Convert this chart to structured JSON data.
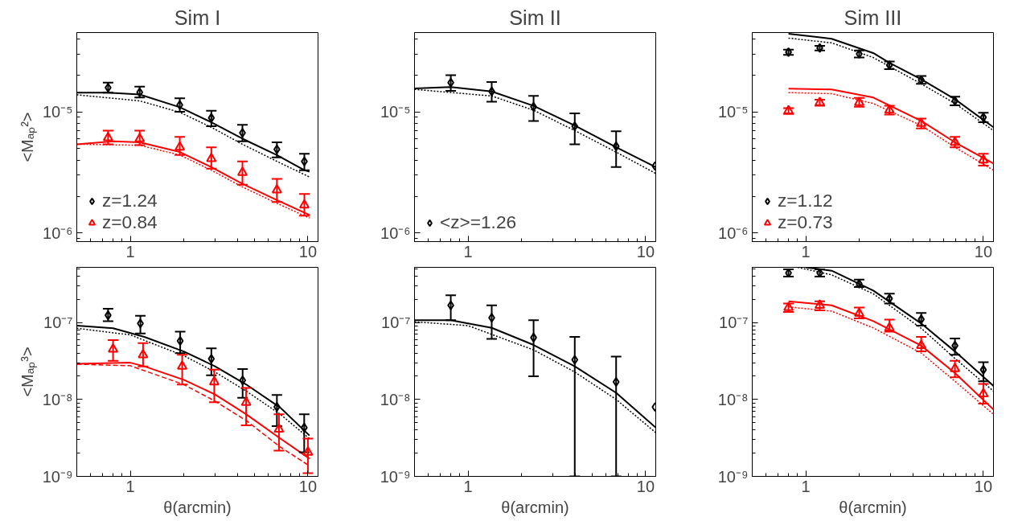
{
  "chart_data": [
    {
      "type": "scatter",
      "title": "Sim I",
      "ylabel": "<Mₐₚ²>",
      "xlim": [
        0.5,
        11.4
      ],
      "ylim": [
        8.5e-07,
        4.5e-05
      ],
      "xticks": [
        1,
        10
      ],
      "yticks": [
        {
          "value": 1e-06,
          "label": "10⁻⁶"
        },
        {
          "value": 1e-05,
          "label": "10⁻⁵"
        }
      ],
      "log": "xy",
      "grid": false,
      "legend": "bottom left",
      "series": [
        {
          "type": "line",
          "color": "#000000",
          "line_style": "solid",
          "x": [
            0.5,
            0.75,
            1.13,
            1.9,
            2.86,
            4.28,
            6.69,
            9.55,
            10.2
          ],
          "values": [
            1.44e-05,
            1.44e-05,
            1.39e-05,
            1.09e-05,
            8.2e-06,
            6e-06,
            4.4e-06,
            3.3e-06,
            3.2e-06
          ]
        },
        {
          "type": "line",
          "color": "#000000",
          "line_style": "dotted",
          "x": [
            0.5,
            1.13,
            1.9,
            2.86,
            4.28,
            6.69,
            10.2
          ],
          "values": [
            1.38e-05,
            1.23e-05,
            9.9e-06,
            7.45e-06,
            5.4e-06,
            3.9e-06,
            2.9e-06
          ]
        },
        {
          "type": "line",
          "color": "#ff0000",
          "line_style": "solid",
          "x": [
            0.5,
            0.8,
            1.13,
            1.9,
            2.86,
            4.28,
            6.69,
            10.2
          ],
          "values": [
            5.4e-06,
            5.7e-06,
            5.6e-06,
            4.66e-06,
            3.5e-06,
            2.55e-06,
            1.87e-06,
            1.41e-06
          ]
        },
        {
          "type": "line",
          "color": "#ff0000",
          "line_style": "dotted",
          "x": [
            0.5,
            1.13,
            1.9,
            2.86,
            4.28,
            6.69,
            10.2
          ],
          "values": [
            5.4e-06,
            5.3e-06,
            4.4e-06,
            3.3e-06,
            2.4e-06,
            1.76e-06,
            1.33e-06
          ]
        },
        {
          "name": "z=1.24",
          "color": "#000000",
          "marker": "diamond",
          "x": [
            0.75,
            1.13,
            1.9,
            2.86,
            4.28,
            6.69,
            9.55
          ],
          "values": [
            1.58e-05,
            1.45e-05,
            1.14e-05,
            8.9e-06,
            6.7e-06,
            4.9e-06,
            3.9e-06
          ],
          "errors": [
            [
              1.44e-05,
              1.74e-05
            ],
            [
              1.31e-05,
              1.61e-05
            ],
            [
              1e-05,
              1.29e-05
            ],
            [
              7.6e-06,
              1.02e-05
            ],
            [
              5.7e-06,
              7.8e-06
            ],
            [
              4.2e-06,
              5.6e-06
            ],
            [
              3.3e-06,
              4.5e-06
            ]
          ]
        },
        {
          "name": "z=0.84",
          "color": "#ff0000",
          "marker": "triangle",
          "x": [
            0.75,
            1.13,
            1.9,
            2.86,
            4.28,
            6.69,
            9.55
          ],
          "values": [
            6.1e-06,
            6e-06,
            5.1e-06,
            4.1e-06,
            3.15e-06,
            2.26e-06,
            1.7e-06
          ],
          "errors": [
            [
              5.4e-06,
              7e-06
            ],
            [
              5.3e-06,
              7e-06
            ],
            [
              4.4e-06,
              6.2e-06
            ],
            [
              3.4e-06,
              5.1e-06
            ],
            [
              2.5e-06,
              3.9e-06
            ],
            [
              1.8e-06,
              2.8e-06
            ],
            [
              1.39e-06,
              2.1e-06
            ]
          ]
        }
      ]
    },
    {
      "type": "scatter",
      "title": "Sim II",
      "xlim": [
        0.5,
        11.4
      ],
      "ylim": [
        8.5e-07,
        4.5e-05
      ],
      "xticks": [
        1,
        10
      ],
      "yticks": [
        {
          "value": 1e-06,
          "label": "10⁻⁶"
        },
        {
          "value": 1e-05,
          "label": "10⁻⁵"
        }
      ],
      "log": "xy",
      "grid": false,
      "legend": "bottom left",
      "series": [
        {
          "type": "line",
          "color": "#000000",
          "line_style": "solid",
          "x": [
            0.5,
            0.8,
            1.36,
            2.34,
            3.99,
            6.82,
            11.4
          ],
          "values": [
            1.56e-05,
            1.6e-05,
            1.47e-05,
            1.12e-05,
            7.7e-06,
            5.1e-06,
            3.5e-06
          ]
        },
        {
          "type": "line",
          "color": "#000000",
          "line_style": "dotted",
          "x": [
            0.5,
            1.36,
            2.34,
            3.99,
            6.82,
            11.4
          ],
          "values": [
            1.53e-05,
            1.35e-05,
            1.03e-05,
            7e-06,
            4.65e-06,
            3.1e-06
          ]
        },
        {
          "name": "<z>=1.26",
          "color": "#000000",
          "marker": "diamond",
          "x": [
            0.8,
            1.36,
            2.34,
            3.99,
            6.82,
            11.3
          ],
          "values": [
            1.74e-05,
            1.47e-05,
            1.1e-05,
            7.6e-06,
            5.2e-06,
            3.57e-06
          ],
          "errors": [
            [
              1.49e-05,
              2e-05
            ],
            [
              1.21e-05,
              1.76e-05
            ],
            [
              8.4e-06,
              1.35e-05
            ],
            [
              5.4e-06,
              9.7e-06
            ],
            [
              3.5e-06,
              6.9e-06
            ],
            null
          ]
        }
      ]
    },
    {
      "type": "scatter",
      "title": "Sim III",
      "xlim": [
        0.5,
        11.4
      ],
      "ylim": [
        8.5e-07,
        4.5e-05
      ],
      "xticks": [
        1,
        10
      ],
      "yticks": [
        {
          "value": 1e-06,
          "label": "10⁻⁶"
        },
        {
          "value": 1e-05,
          "label": "10⁻⁵"
        }
      ],
      "log": "xy",
      "grid": false,
      "legend": "bottom left",
      "series": [
        {
          "type": "line",
          "color": "#000000",
          "line_style": "solid",
          "x": [
            0.8,
            1.4,
            2.4,
            2.96,
            4.47,
            6.92,
            11.4
          ],
          "values": [
            4.4e-05,
            4e-05,
            3.05e-05,
            2.53e-05,
            1.85e-05,
            1.27e-05,
            7.45e-06
          ]
        },
        {
          "type": "line",
          "color": "#000000",
          "line_style": "dotted",
          "x": [
            0.8,
            1.4,
            2.4,
            4.47,
            6.92,
            11.4
          ],
          "values": [
            4.05e-05,
            3.7e-05,
            2.8e-05,
            1.7e-05,
            1.17e-05,
            7e-06
          ]
        },
        {
          "type": "line",
          "color": "#ff0000",
          "line_style": "solid",
          "x": [
            0.8,
            1.4,
            2.4,
            4.47,
            6.92,
            11.4
          ],
          "values": [
            1.55e-05,
            1.53e-05,
            1.31e-05,
            8.4e-06,
            5.6e-06,
            3.74e-06
          ]
        },
        {
          "type": "line",
          "color": "#ff0000",
          "line_style": "dotted",
          "x": [
            0.8,
            1.4,
            2.4,
            4.47,
            6.92,
            11.4
          ],
          "values": [
            1.44e-05,
            1.41e-05,
            1.17e-05,
            7.7e-06,
            5.1e-06,
            3.3e-06
          ]
        },
        {
          "name": "z=1.12",
          "color": "#000000",
          "marker": "diamond",
          "x": [
            0.8,
            1.2,
            2.0,
            2.96,
            4.47,
            6.92,
            10.0
          ],
          "values": [
            3.1e-05,
            3.36e-05,
            3e-05,
            2.42e-05,
            1.83e-05,
            1.23e-05,
            9e-06
          ],
          "errors": [
            [
              2.95e-05,
              3.25e-05
            ],
            [
              3.2e-05,
              3.5e-05
            ],
            [
              2.8e-05,
              3.2e-05
            ],
            [
              2.25e-05,
              2.6e-05
            ],
            [
              1.7e-05,
              1.97e-05
            ],
            [
              1.13e-05,
              1.33e-05
            ],
            [
              8.2e-06,
              9.8e-06
            ]
          ]
        },
        {
          "name": "z=0.73",
          "color": "#ff0000",
          "marker": "triangle",
          "x": [
            0.8,
            1.2,
            2.0,
            2.96,
            4.47,
            6.92,
            10.0
          ],
          "values": [
            1.02e-05,
            1.19e-05,
            1.19e-05,
            1.03e-05,
            8e-06,
            5.6e-06,
            4e-06
          ],
          "errors": [
            [
              9.6e-06,
              1.07e-05
            ],
            [
              1.12e-05,
              1.26e-05
            ],
            [
              1.1e-05,
              1.3e-05
            ],
            [
              9.5e-06,
              1.12e-05
            ],
            [
              7.3e-06,
              8.8e-06
            ],
            [
              5.1e-06,
              6.2e-06
            ],
            [
              3.6e-06,
              4.5e-06
            ]
          ]
        }
      ]
    },
    {
      "type": "scatter",
      "xlabel": "θ(arcmin)",
      "ylabel": "<Mₐₚ³>",
      "xlim": [
        0.5,
        11.4
      ],
      "ylim": [
        1e-09,
        5.2e-07
      ],
      "xticks": [
        1,
        10
      ],
      "yticks": [
        {
          "value": 1e-09,
          "label": "10⁻⁹"
        },
        {
          "value": 1e-08,
          "label": "10⁻⁸"
        },
        {
          "value": 1e-07,
          "label": "10⁻⁷"
        }
      ],
      "log": "xy",
      "grid": false,
      "series": [
        {
          "type": "line",
          "color": "#000000",
          "line_style": "solid",
          "x": [
            0.5,
            0.8,
            1.2,
            2.0,
            3.0,
            4.5,
            7.0,
            10.2
          ],
          "values": [
            9.1e-08,
            8.4e-08,
            6.5e-08,
            4.2e-08,
            2.69e-08,
            1.56e-08,
            7.8e-09,
            3.4e-09
          ]
        },
        {
          "type": "line",
          "color": "#000000",
          "line_style": "dotted",
          "x": [
            0.5,
            1.0,
            2.0,
            3.0,
            4.5,
            7.0,
            10.2
          ],
          "values": [
            8.4e-08,
            6.9e-08,
            3.7e-08,
            2.27e-08,
            1.28e-08,
            6.4e-09,
            3.1e-09
          ]
        },
        {
          "type": "line",
          "color": "#ff0000",
          "line_style": "solid",
          "x": [
            0.5,
            1.0,
            1.2,
            2.0,
            3.0,
            4.5,
            7.0,
            10.2
          ],
          "values": [
            2.9e-08,
            3e-08,
            2.69e-08,
            1.8e-08,
            1.16e-08,
            6.4e-09,
            3.1e-09,
            1.7e-09
          ]
        },
        {
          "type": "line",
          "color": "#ff0000",
          "line_style": "dashed",
          "x": [
            0.5,
            1.0,
            2.0,
            3.0,
            4.5,
            7.0,
            10.2
          ],
          "values": [
            2.87e-08,
            2.74e-08,
            1.56e-08,
            9.5e-09,
            5.3e-09,
            2.4e-09,
            1.37e-09
          ]
        },
        {
          "color": "#000000",
          "marker": "diamond",
          "x": [
            0.75,
            1.14,
            1.91,
            2.86,
            4.29,
            6.69,
            9.53
          ],
          "values": [
            1.24e-07,
            9.7e-08,
            5.75e-08,
            3.37e-08,
            1.77e-08,
            8e-09,
            4.3e-09
          ],
          "errors": [
            [
              1.04e-07,
              1.51e-07
            ],
            [
              7.2e-08,
              1.22e-07
            ],
            [
              3.99e-08,
              7.6e-08
            ],
            [
              2.06e-08,
              4.6e-08
            ],
            [
              1.05e-08,
              2.48e-08
            ],
            [
              4.5e-09,
              1.14e-08
            ],
            [
              2.06e-09,
              6.4e-09
            ]
          ]
        },
        {
          "color": "#ff0000",
          "marker": "triangle",
          "x": [
            0.8,
            1.18,
            1.96,
            2.97,
            4.49,
            6.87,
            10.0
          ],
          "values": [
            4.5e-08,
            3.8e-08,
            2.69e-08,
            1.69e-08,
            9.1e-09,
            4.1e-09,
            2.06e-09
          ],
          "errors": [
            [
              3.18e-08,
              5.9e-08
            ],
            [
              2.69e-08,
              5.4e-08
            ],
            [
              1.56e-08,
              3.8e-08
            ],
            [
              9.2e-09,
              2.43e-08
            ],
            [
              4.6e-09,
              1.41e-08
            ],
            [
              2.16e-09,
              6.4e-09
            ],
            [
              1.1e-09,
              3.1e-09
            ]
          ]
        }
      ]
    },
    {
      "type": "scatter",
      "xlabel": "θ(arcmin)",
      "xlim": [
        0.5,
        11.4
      ],
      "ylim": [
        1e-09,
        5.2e-07
      ],
      "xticks": [
        1,
        10
      ],
      "yticks": [
        {
          "value": 1e-09,
          "label": "10⁻⁹"
        },
        {
          "value": 1e-08,
          "label": "10⁻⁸"
        },
        {
          "value": 1e-07,
          "label": "10⁻⁷"
        }
      ],
      "log": "xy",
      "grid": false,
      "series": [
        {
          "type": "line",
          "color": "#000000",
          "line_style": "solid",
          "x": [
            0.5,
            0.8,
            1.36,
            2.34,
            3.99,
            6.82,
            11.4
          ],
          "values": [
            1.07e-07,
            1.07e-07,
            8.5e-08,
            5.1e-08,
            2.69e-08,
            1.22e-08,
            4.3e-09
          ]
        },
        {
          "type": "line",
          "color": "#000000",
          "line_style": "dotted",
          "x": [
            0.5,
            1.0,
            2.34,
            3.99,
            6.82,
            11.4
          ],
          "values": [
            1.02e-07,
            9.1e-08,
            4.4e-08,
            2.27e-08,
            1e-08,
            3.7e-09
          ]
        },
        {
          "color": "#000000",
          "marker": "diamond",
          "x": [
            0.8,
            1.36,
            2.34,
            3.99,
            6.82,
            11.3
          ],
          "values": [
            1.67e-07,
            1.15e-07,
            6.35e-08,
            3.27e-08,
            1.69e-08,
            7.97e-09
          ],
          "errors": [
            [
              1.07e-07,
              2.25e-07
            ],
            [
              6.1e-08,
              1.67e-07
            ],
            [
              2e-08,
              1.07e-07
            ],
            [
              1e-09,
              6.5e-08
            ],
            [
              1e-09,
              3.6e-08
            ],
            null
          ]
        }
      ]
    },
    {
      "type": "scatter",
      "xlabel": "θ(arcmin)",
      "xlim": [
        0.5,
        11.4
      ],
      "ylim": [
        1e-09,
        5.2e-07
      ],
      "xticks": [
        1,
        10
      ],
      "yticks": [
        {
          "value": 1e-09,
          "label": "10⁻⁹"
        },
        {
          "value": 1e-08,
          "label": "10⁻⁸"
        },
        {
          "value": 1e-07,
          "label": "10⁻⁷"
        }
      ],
      "log": "xy",
      "grid": false,
      "series": [
        {
          "type": "line",
          "color": "#000000",
          "line_style": "solid",
          "x": [
            1.0,
            1.4,
            2.4,
            4.47,
            6.92,
            11.4
          ],
          "values": [
            5.2e-07,
            4.7e-07,
            2.6e-07,
            9.7e-08,
            4.2e-08,
            1.5e-08
          ]
        },
        {
          "type": "line",
          "color": "#000000",
          "line_style": "dotted",
          "x": [
            0.9,
            1.4,
            2.4,
            4.47,
            6.92,
            11.4
          ],
          "values": [
            5.2e-07,
            4.15e-07,
            2.36e-07,
            8.4e-08,
            3.4e-08,
            1.28e-08
          ]
        },
        {
          "type": "line",
          "color": "#ff0000",
          "line_style": "solid",
          "x": [
            0.8,
            1.4,
            2.4,
            4.47,
            6.92,
            11.4
          ],
          "values": [
            1.88e-07,
            1.67e-07,
            1.04e-07,
            5e-08,
            2.2e-08,
            7.4e-09
          ]
        },
        {
          "type": "line",
          "color": "#ff0000",
          "line_style": "dotted",
          "x": [
            0.8,
            1.4,
            2.4,
            4.47,
            6.92,
            11.4
          ],
          "values": [
            1.59e-07,
            1.4e-07,
            8.5e-08,
            4e-08,
            1.72e-08,
            6.4e-09
          ]
        },
        {
          "color": "#000000",
          "marker": "diamond",
          "x": [
            0.8,
            1.2,
            2.0,
            2.96,
            4.47,
            6.92,
            10.0
          ],
          "values": [
            4.4e-07,
            4.4e-07,
            3.18e-07,
            2.04e-07,
            1.1e-07,
            5e-08,
            2.43e-08
          ],
          "errors": [
            [
              3.95e-07,
              4.9e-07
            ],
            [
              3.95e-07,
              4.9e-07
            ],
            [
              2.88e-07,
              3.6e-07
            ],
            [
              1.76e-07,
              2.36e-07
            ],
            [
              9.1e-08,
              1.33e-07
            ],
            [
              3.8e-08,
              6.2e-08
            ],
            [
              1.72e-08,
              3.05e-08
            ]
          ]
        },
        {
          "color": "#ff0000",
          "marker": "triangle",
          "x": [
            0.8,
            1.2,
            2.0,
            2.96,
            4.47,
            6.92,
            10.0
          ],
          "values": [
            1.56e-07,
            1.67e-07,
            1.31e-07,
            8.5e-08,
            5e-08,
            2.5e-08,
            1.18e-08
          ],
          "errors": [
            [
              1.37e-07,
              1.76e-07
            ],
            [
              1.44e-07,
              1.88e-07
            ],
            [
              1.13e-07,
              1.56e-07
            ],
            [
              7.6e-08,
              1.09e-07
            ],
            [
              4.2e-08,
              6.5e-08
            ],
            [
              1.94e-08,
              3.18e-08
            ],
            [
              8.8e-09,
              1.59e-08
            ]
          ]
        }
      ]
    }
  ]
}
